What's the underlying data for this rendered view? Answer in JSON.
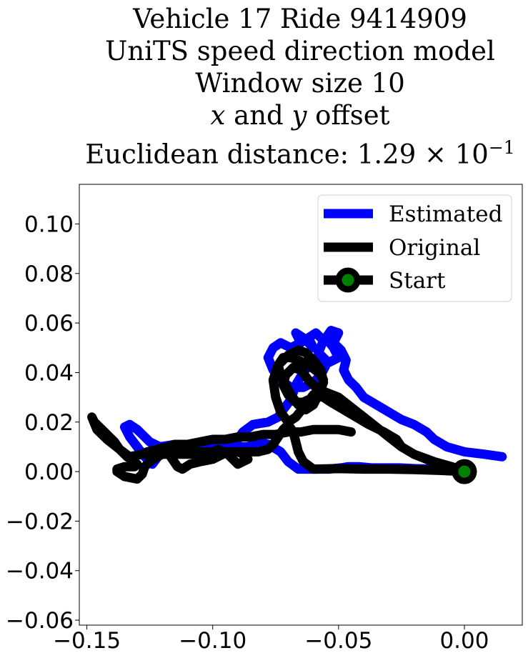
{
  "title": {
    "line1": "Vehicle 17 Ride 9414909",
    "line2": "UniTS speed direction model",
    "line3": "Window size 10",
    "line4_x": "x",
    "line4_mid": " and ",
    "line4_y": "y",
    "line4_end": " offset",
    "line5_prefix": "Euclidean distance: ",
    "line5_value": "1.29 × 10",
    "line5_exp": "−1"
  },
  "colors": {
    "estimated": "#0000ff",
    "original": "#000000",
    "start_marker": "#008000"
  },
  "chart_data": {
    "type": "line",
    "title": "Vehicle 17 Ride 9414909 UniTS speed direction model Window size 10 x and y offset Euclidean distance: 1.29 × 10^-1",
    "xlabel": "",
    "ylabel": "",
    "xlim": [
      -0.153,
      0.023
    ],
    "ylim": [
      -0.062,
      0.116
    ],
    "xticks": [
      -0.15,
      -0.1,
      -0.05,
      0.0
    ],
    "xtick_labels": [
      "−0.15",
      "−0.10",
      "−0.05",
      "0.00"
    ],
    "yticks": [
      -0.06,
      -0.04,
      -0.02,
      0.0,
      0.02,
      0.04,
      0.06,
      0.08,
      0.1
    ],
    "ytick_labels": [
      "−0.06",
      "−0.04",
      "−0.02",
      "0.00",
      "0.02",
      "0.04",
      "0.06",
      "0.08",
      "0.10"
    ],
    "grid": false,
    "legend": {
      "position": "top-right",
      "entries": [
        "Estimated",
        "Original",
        "Start"
      ]
    },
    "series": [
      {
        "name": "Estimated",
        "color": "#0000ff",
        "x": [
          0.015,
          0.008,
          0.0,
          -0.007,
          -0.012,
          -0.015,
          -0.02,
          -0.025,
          -0.03,
          -0.035,
          -0.04,
          -0.043,
          -0.046,
          -0.048,
          -0.047,
          -0.049,
          -0.052,
          -0.05,
          -0.053,
          -0.055,
          -0.052,
          -0.05,
          -0.054,
          -0.058,
          -0.056,
          -0.059,
          -0.062,
          -0.06,
          -0.064,
          -0.067,
          -0.065,
          -0.069,
          -0.073,
          -0.076,
          -0.078,
          -0.076,
          -0.073,
          -0.069,
          -0.064,
          -0.06,
          -0.057,
          -0.055,
          -0.058,
          -0.061,
          -0.064,
          -0.067,
          -0.069,
          -0.072,
          -0.074,
          -0.078,
          -0.084,
          -0.088,
          -0.09,
          -0.092,
          -0.095,
          -0.098,
          -0.102,
          -0.106,
          -0.11,
          -0.114,
          -0.118,
          -0.121,
          -0.124,
          -0.125,
          -0.127,
          -0.13,
          -0.133,
          -0.135,
          -0.133,
          -0.13,
          -0.128,
          -0.125,
          -0.121,
          -0.115,
          -0.108,
          -0.1,
          -0.093,
          -0.086,
          -0.082,
          -0.078,
          -0.073,
          -0.07,
          -0.066,
          -0.06,
          -0.054,
          -0.049,
          -0.046,
          -0.042,
          -0.037,
          -0.032,
          -0.026,
          -0.02,
          -0.012,
          -0.005,
          0.0,
          0.002,
          0.0
        ],
        "y": [
          0.006,
          0.007,
          0.008,
          0.01,
          0.013,
          0.016,
          0.019,
          0.021,
          0.024,
          0.027,
          0.03,
          0.034,
          0.037,
          0.041,
          0.045,
          0.049,
          0.052,
          0.056,
          0.057,
          0.054,
          0.05,
          0.046,
          0.044,
          0.048,
          0.053,
          0.056,
          0.054,
          0.05,
          0.054,
          0.056,
          0.052,
          0.05,
          0.052,
          0.05,
          0.046,
          0.041,
          0.037,
          0.034,
          0.034,
          0.036,
          0.039,
          0.043,
          0.046,
          0.044,
          0.04,
          0.035,
          0.029,
          0.025,
          0.022,
          0.02,
          0.019,
          0.016,
          0.013,
          0.011,
          0.01,
          0.01,
          0.009,
          0.008,
          0.008,
          0.009,
          0.008,
          0.007,
          0.003,
          0.004,
          0.006,
          0.01,
          0.014,
          0.018,
          0.019,
          0.017,
          0.015,
          0.012,
          0.01,
          0.011,
          0.01,
          0.009,
          0.01,
          0.01,
          0.012,
          0.011,
          0.008,
          0.004,
          0.001,
          0.001,
          0.001,
          0.0015,
          0.002,
          0.002,
          0.0015,
          0.0015,
          0.0015,
          0.0012,
          0.001,
          0.0008,
          0.0005,
          0.0003,
          0.0
        ]
      },
      {
        "name": "Original",
        "color": "#000000",
        "x": [
          0.0,
          -0.005,
          -0.012,
          -0.02,
          -0.025,
          -0.027,
          -0.032,
          -0.038,
          -0.043,
          -0.048,
          -0.053,
          -0.056,
          -0.06,
          -0.063,
          -0.067,
          -0.07,
          -0.073,
          -0.075,
          -0.076,
          -0.074,
          -0.07,
          -0.066,
          -0.063,
          -0.06,
          -0.057,
          -0.056,
          -0.058,
          -0.06,
          -0.063,
          -0.066,
          -0.069,
          -0.071,
          -0.073,
          -0.074,
          -0.072,
          -0.069,
          -0.066,
          -0.062,
          -0.058,
          -0.056,
          -0.057,
          -0.06,
          -0.064,
          -0.067,
          -0.07,
          -0.072,
          -0.071,
          -0.068,
          -0.065,
          -0.062,
          -0.059,
          -0.055,
          -0.05,
          -0.045,
          -0.04,
          -0.035,
          -0.03,
          -0.025,
          -0.02,
          -0.015,
          -0.01,
          -0.005,
          0.0,
          -0.01,
          -0.02,
          -0.03,
          -0.04,
          -0.05,
          -0.06,
          -0.064,
          -0.066,
          -0.067,
          -0.068,
          -0.07,
          -0.072,
          -0.074,
          -0.076,
          -0.078,
          -0.082,
          -0.086,
          -0.09,
          -0.095,
          -0.1,
          -0.105,
          -0.11,
          -0.115,
          -0.12,
          -0.124,
          -0.128,
          -0.133,
          -0.137,
          -0.142,
          -0.146,
          -0.148,
          -0.147,
          -0.144,
          -0.141,
          -0.139,
          -0.137,
          -0.134,
          -0.131,
          -0.13,
          -0.131,
          -0.135,
          -0.138,
          -0.138,
          -0.135,
          -0.13,
          -0.128,
          -0.127,
          -0.125,
          -0.122,
          -0.118,
          -0.116,
          -0.114,
          -0.112,
          -0.109,
          -0.105,
          -0.1,
          -0.096,
          -0.093,
          -0.09,
          -0.088,
          -0.086,
          -0.088,
          -0.09,
          -0.092,
          -0.094,
          -0.096,
          -0.098,
          -0.1,
          -0.104,
          -0.108,
          -0.112,
          -0.116,
          -0.12,
          -0.124,
          -0.128,
          -0.126,
          -0.122,
          -0.118,
          -0.115,
          -0.11,
          -0.105,
          -0.1,
          -0.095,
          -0.09,
          -0.085,
          -0.08,
          -0.075,
          -0.07,
          -0.065,
          -0.06,
          -0.055,
          -0.05,
          -0.045
        ],
        "y": [
          0.0,
          0.002,
          0.004,
          0.007,
          0.01,
          0.013,
          0.016,
          0.019,
          0.022,
          0.025,
          0.028,
          0.03,
          0.031,
          0.027,
          0.022,
          0.02,
          0.024,
          0.03,
          0.037,
          0.043,
          0.047,
          0.049,
          0.048,
          0.045,
          0.041,
          0.036,
          0.031,
          0.027,
          0.025,
          0.027,
          0.031,
          0.035,
          0.039,
          0.043,
          0.046,
          0.046,
          0.045,
          0.043,
          0.04,
          0.037,
          0.033,
          0.03,
          0.028,
          0.028,
          0.031,
          0.035,
          0.039,
          0.042,
          0.041,
          0.037,
          0.034,
          0.032,
          0.03,
          0.026,
          0.022,
          0.018,
          0.014,
          0.01,
          0.007,
          0.005,
          0.003,
          0.001,
          0.0,
          0.0005,
          0.0008,
          0.001,
          0.001,
          0.0012,
          0.001,
          0.004,
          0.008,
          0.012,
          0.016,
          0.019,
          0.017,
          0.014,
          0.011,
          0.009,
          0.008,
          0.008,
          0.008,
          0.008,
          0.008,
          0.008,
          0.008,
          0.008,
          0.008,
          0.008,
          0.007,
          0.006,
          0.009,
          0.013,
          0.017,
          0.022,
          0.02,
          0.017,
          0.014,
          0.012,
          0.009,
          0.006,
          0.004,
          0.003,
          0.002,
          0.002,
          0.001,
          0.0,
          -0.002,
          -0.003,
          -0.001,
          0.002,
          0.004,
          0.006,
          0.008,
          0.005,
          0.002,
          0.001,
          0.003,
          0.004,
          0.005,
          0.007,
          0.008,
          0.008,
          0.007,
          0.005,
          0.004,
          0.003,
          0.005,
          0.007,
          0.008,
          0.009,
          0.007,
          0.007,
          0.007,
          0.007,
          0.007,
          0.007,
          0.007,
          0.007,
          0.008,
          0.009,
          0.01,
          0.011,
          0.011,
          0.012,
          0.013,
          0.013,
          0.014,
          0.014,
          0.015,
          0.015,
          0.016,
          0.016,
          0.017,
          0.017,
          0.017,
          0.016
        ]
      }
    ],
    "start_point": {
      "x": 0.0,
      "y": 0.0,
      "label": "Start"
    }
  }
}
